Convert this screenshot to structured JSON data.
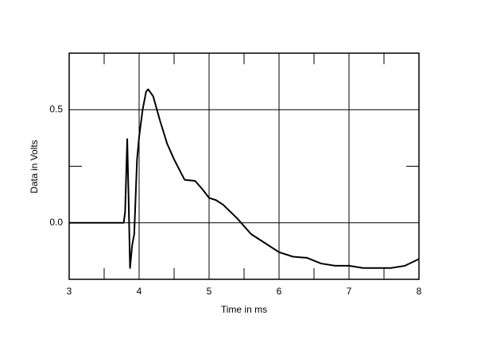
{
  "chart_data": {
    "type": "line",
    "x_label": "Time in ms",
    "y_label": "Data in Volts",
    "xlim": [
      3,
      8
    ],
    "ylim": [
      -0.25,
      0.75
    ],
    "xticks": [
      3,
      4,
      5,
      6,
      7,
      8
    ],
    "yticks": [
      {
        "value": 0,
        "label": "0.0"
      },
      {
        "value": 0.5,
        "label": "0.5"
      }
    ],
    "minor_xticks": [
      3.5,
      4.5,
      5.5,
      6.5,
      7.5
    ],
    "minor_yticks": [
      0.25
    ],
    "grid": true,
    "series": [
      {
        "color": "#000000",
        "x": [
          3.0,
          3.78,
          3.8,
          3.83,
          3.85,
          3.87,
          3.9,
          3.93,
          3.97,
          4.0,
          4.05,
          4.1,
          4.13,
          4.2,
          4.3,
          4.4,
          4.5,
          4.6,
          4.65,
          4.8,
          4.9,
          5.0,
          5.1,
          5.2,
          5.4,
          5.6,
          5.8,
          6.0,
          6.2,
          6.4,
          6.6,
          6.8,
          7.0,
          7.2,
          7.4,
          7.6,
          7.8,
          8.0
        ],
        "values": [
          0,
          0,
          0.05,
          0.37,
          0.1,
          -0.2,
          -0.1,
          -0.05,
          0.28,
          0.38,
          0.5,
          0.58,
          0.59,
          0.56,
          0.45,
          0.35,
          0.28,
          0.22,
          0.19,
          0.185,
          0.15,
          0.11,
          0.1,
          0.08,
          0.02,
          -0.05,
          -0.09,
          -0.13,
          -0.15,
          -0.155,
          -0.18,
          -0.19,
          -0.19,
          -0.2,
          -0.2,
          -0.2,
          -0.19,
          -0.16
        ]
      }
    ]
  }
}
